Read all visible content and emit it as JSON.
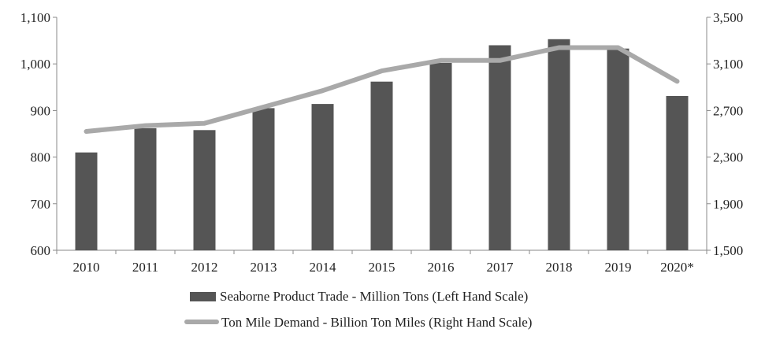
{
  "chart_data": {
    "type": "bar+line",
    "title": "",
    "xlabel": "",
    "ylabel": "",
    "categories": [
      "2010",
      "2011",
      "2012",
      "2013",
      "2014",
      "2015",
      "2016",
      "2017",
      "2018",
      "2019",
      "2020*"
    ],
    "series": [
      {
        "name": "Seaborne Product Trade - Million Tons (Left Hand Scale)",
        "type": "bar",
        "axis": "left",
        "color": "#555555",
        "values": [
          810,
          862,
          858,
          905,
          914,
          962,
          1002,
          1040,
          1053,
          1033,
          931
        ]
      },
      {
        "name": "Ton Mile Demand - Billion Ton Miles (Right Hand Scale)",
        "type": "line",
        "axis": "right",
        "color": "#a9a9a9",
        "values": [
          2520,
          2570,
          2590,
          2730,
          2870,
          3040,
          3130,
          3130,
          3240,
          3240,
          2950
        ]
      }
    ],
    "y_left": {
      "min": 600,
      "max": 1100,
      "ticks": [
        "600",
        "700",
        "800",
        "900",
        "1,000",
        "1,100"
      ]
    },
    "y_right": {
      "min": 1500,
      "max": 3500,
      "ticks": [
        "1,500",
        "1,900",
        "2,300",
        "2,700",
        "3,100",
        "3,500"
      ]
    },
    "grid": false,
    "legend_position": "bottom"
  }
}
